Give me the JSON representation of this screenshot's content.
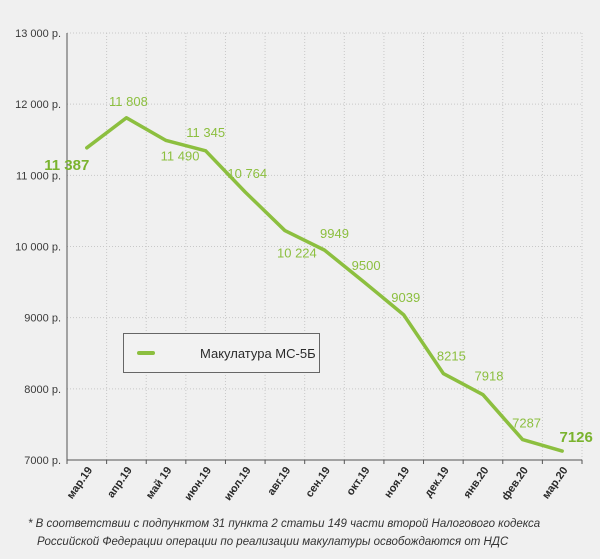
{
  "chart_data": {
    "type": "line",
    "categories": [
      "мар.19",
      "апр.19",
      "май 19",
      "июн.19",
      "июл.19",
      "авг.19",
      "сен.19",
      "окт.19",
      "ноя.19",
      "дек.19",
      "янв.20",
      "фев.20",
      "мар.20"
    ],
    "series": [
      {
        "name": "Макулатура МС-5Б",
        "values": [
          11387,
          11808,
          11490,
          11345,
          10764,
          10224,
          9949,
          9500,
          9039,
          8215,
          7918,
          7287,
          7126
        ],
        "color": "#8cbf3f"
      }
    ],
    "data_labels": [
      "11 387",
      "11 808",
      "11 490",
      "11 345",
      "10 764",
      "10 224",
      "9949",
      "9500",
      "9039",
      "8215",
      "7918",
      "7287",
      "7126"
    ],
    "ylim": [
      7000,
      13000
    ],
    "yticks": [
      7000,
      8000,
      9000,
      10000,
      11000,
      12000,
      13000
    ],
    "ytick_labels": [
      "7000 р.",
      "8000 р.",
      "9000 р.",
      "10 000 р.",
      "11 000 р.",
      "12 000 р.",
      "13 000 р."
    ],
    "grid": true,
    "legend": "inside-middle-left",
    "title": "",
    "xlabel": "",
    "ylabel": ""
  },
  "legend": {
    "label": "Макулатура МС-5Б"
  },
  "footnote": {
    "line1": "* В соответствии с подпунктом 31 пункта 2 статьи 149 части второй Налогового кодекса",
    "line2": "Российской Федерации операции по реализации макулатуры освобождаются от НДС"
  }
}
